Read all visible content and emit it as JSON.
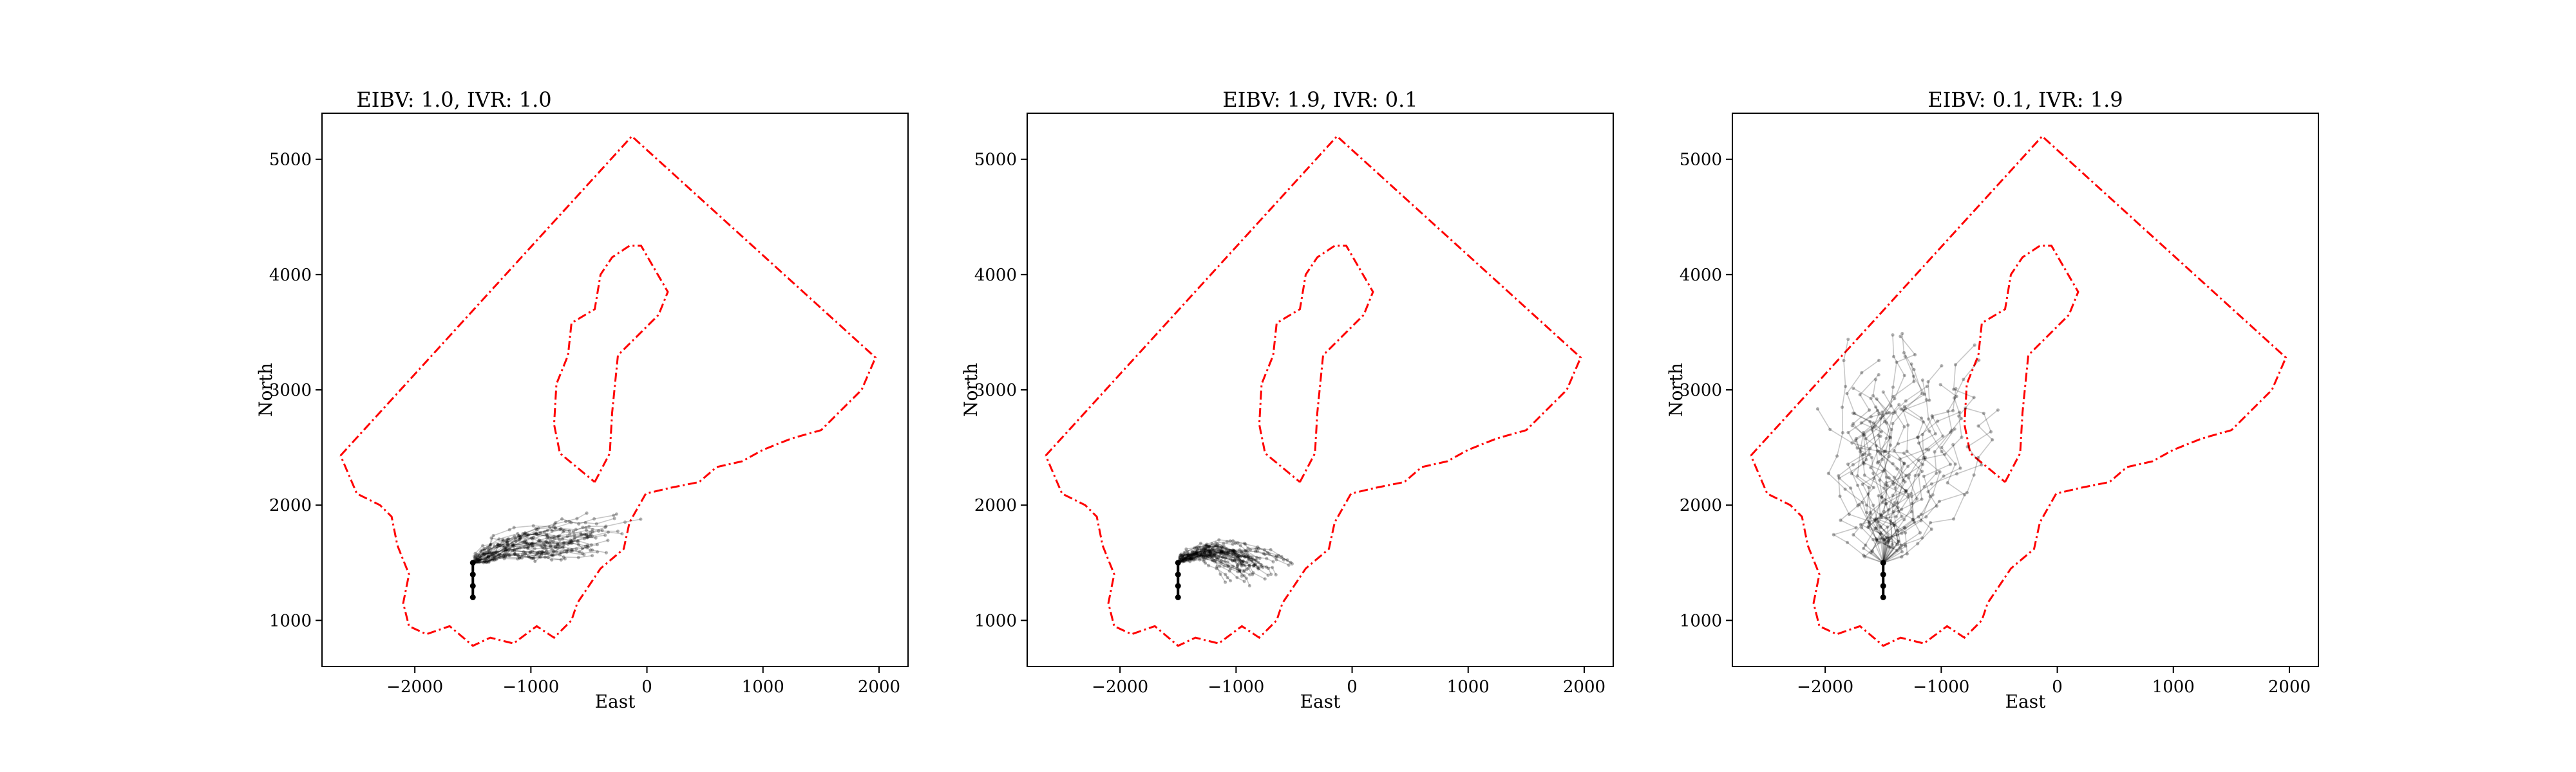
{
  "chart_data": [
    {
      "type": "line",
      "title": "EIBV: 1.0, IVR: 1.0",
      "xlabel": "East",
      "ylabel": "North",
      "xlim": [
        -2800,
        2250
      ],
      "ylim": [
        600,
        5400
      ],
      "xticks": [
        -2000,
        -1000,
        0,
        1000,
        2000
      ],
      "yticks": [
        1000,
        2000,
        3000,
        4000,
        5000
      ],
      "xtick_labels": [
        "−2000",
        "−1000",
        "0",
        "1000",
        "2000"
      ],
      "ytick_labels": [
        "1000",
        "2000",
        "3000",
        "4000",
        "5000"
      ],
      "grid": false,
      "legend": "none",
      "trajectory_spread": [
        0.6,
        0.45
      ],
      "trajectory_shape": "straight-east",
      "start": [
        -1500,
        1200
      ]
    },
    {
      "type": "line",
      "title": "EIBV: 1.9, IVR: 0.1",
      "xlabel": "East",
      "ylabel": "North",
      "xlim": [
        -2800,
        2250
      ],
      "ylim": [
        600,
        5400
      ],
      "xticks": [
        -2000,
        -1000,
        0,
        1000,
        2000
      ],
      "yticks": [
        1000,
        2000,
        3000,
        4000,
        5000
      ],
      "xtick_labels": [
        "−2000",
        "−1000",
        "0",
        "1000",
        "2000"
      ],
      "ytick_labels": [
        "1000",
        "2000",
        "3000",
        "4000",
        "5000"
      ],
      "grid": false,
      "legend": "none",
      "trajectory_spread": [
        0.5,
        0.4
      ],
      "trajectory_shape": "arc-north-east",
      "start": [
        -1500,
        1200
      ]
    },
    {
      "type": "line",
      "title": "EIBV: 0.1, IVR: 1.9",
      "xlabel": "East",
      "ylabel": "North",
      "xlim": [
        -2800,
        2250
      ],
      "ylim": [
        600,
        5400
      ],
      "xticks": [
        -2000,
        -1000,
        0,
        1000,
        2000
      ],
      "yticks": [
        1000,
        2000,
        3000,
        4000,
        5000
      ],
      "xtick_labels": [
        "−2000",
        "−1000",
        "0",
        "1000",
        "2000"
      ],
      "ytick_labels": [
        "1000",
        "2000",
        "3000",
        "4000",
        "5000"
      ],
      "grid": false,
      "legend": "none",
      "trajectory_spread": [
        1.0,
        1.0
      ],
      "trajectory_shape": "fan-north",
      "start": [
        -1500,
        1200
      ]
    }
  ],
  "boundary": {
    "color": "#ff0000",
    "outer": [
      [
        -2640,
        2430
      ],
      [
        -130,
        5200
      ],
      [
        1970,
        3280
      ],
      [
        1850,
        3000
      ],
      [
        1700,
        2850
      ],
      [
        1500,
        2650
      ],
      [
        1250,
        2580
      ],
      [
        1000,
        2480
      ],
      [
        820,
        2380
      ],
      [
        600,
        2330
      ],
      [
        450,
        2200
      ],
      [
        200,
        2150
      ],
      [
        -10,
        2100
      ],
      [
        -150,
        1850
      ],
      [
        -200,
        1620
      ],
      [
        -400,
        1450
      ],
      [
        -500,
        1300
      ],
      [
        -600,
        1150
      ],
      [
        -650,
        1000
      ],
      [
        -800,
        850
      ],
      [
        -950,
        950
      ],
      [
        -1150,
        800
      ],
      [
        -1350,
        850
      ],
      [
        -1500,
        780
      ],
      [
        -1700,
        950
      ],
      [
        -1900,
        880
      ],
      [
        -2050,
        950
      ],
      [
        -2100,
        1150
      ],
      [
        -2050,
        1400
      ],
      [
        -2150,
        1650
      ],
      [
        -2200,
        1900
      ],
      [
        -2300,
        2000
      ],
      [
        -2500,
        2100
      ],
      [
        -2640,
        2430
      ]
    ],
    "inner": [
      [
        -450,
        2200
      ],
      [
        -320,
        2450
      ],
      [
        -300,
        2800
      ],
      [
        -250,
        3300
      ],
      [
        -50,
        3500
      ],
      [
        100,
        3650
      ],
      [
        180,
        3850
      ],
      [
        -50,
        4250
      ],
      [
        -150,
        4250
      ],
      [
        -300,
        4150
      ],
      [
        -400,
        4000
      ],
      [
        -450,
        3700
      ],
      [
        -650,
        3580
      ],
      [
        -680,
        3300
      ],
      [
        -780,
        3050
      ],
      [
        -800,
        2700
      ],
      [
        -750,
        2450
      ],
      [
        -450,
        2200
      ]
    ]
  }
}
